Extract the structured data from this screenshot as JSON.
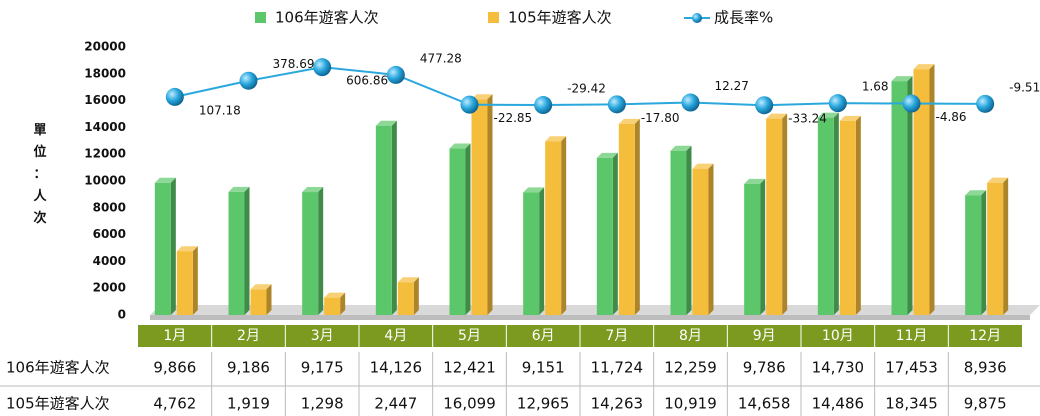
{
  "chart_data": {
    "type": "bar",
    "unit_label": "單位：人次",
    "categories": [
      "1月",
      "2月",
      "3月",
      "4月",
      "5月",
      "6月",
      "7月",
      "8月",
      "9月",
      "10月",
      "11月",
      "12月"
    ],
    "series": [
      {
        "name": "106年遊客人次",
        "color": "#5cc76a",
        "values": [
          9866,
          9186,
          9175,
          14126,
          12421,
          9151,
          11724,
          12259,
          9786,
          14730,
          17453,
          8936
        ],
        "value_labels": [
          "9,866",
          "9,186",
          "9,175",
          "14,126",
          "12,421",
          "9,151",
          "11,724",
          "12,259",
          "9,786",
          "14,730",
          "17,453",
          "8,936"
        ]
      },
      {
        "name": "105年遊客人次",
        "color": "#f5bd3c",
        "values": [
          4762,
          1919,
          1298,
          2447,
          16099,
          12965,
          14263,
          10919,
          14658,
          14486,
          18345,
          9875
        ],
        "value_labels": [
          "4,762",
          "1,919",
          "1,298",
          "2,447",
          "16,099",
          "12,965",
          "14,263",
          "10,919",
          "14,658",
          "14,486",
          "18,345",
          "9,875"
        ]
      },
      {
        "name": "成長率%",
        "color": "#2aa8de",
        "type": "line",
        "axis": "y2",
        "values": [
          107.18,
          378.69,
          606.86,
          477.28,
          -22.85,
          -29.42,
          -17.8,
          12.27,
          -33.24,
          1.68,
          -4.86,
          -9.51
        ],
        "value_labels": [
          "107.18",
          "378.69",
          "606.86",
          "477.28",
          "-22.85",
          "-29.42",
          "-17.80",
          "12.27",
          "-33.24",
          "1.68",
          "-4.86",
          "-9.51"
        ]
      }
    ],
    "ylim": [
      0,
      20000
    ],
    "yticks": [
      0,
      2000,
      4000,
      6000,
      8000,
      10000,
      12000,
      14000,
      16000,
      18000,
      20000
    ],
    "y2lim": [
      -3560,
      946
    ],
    "legend": "top"
  }
}
